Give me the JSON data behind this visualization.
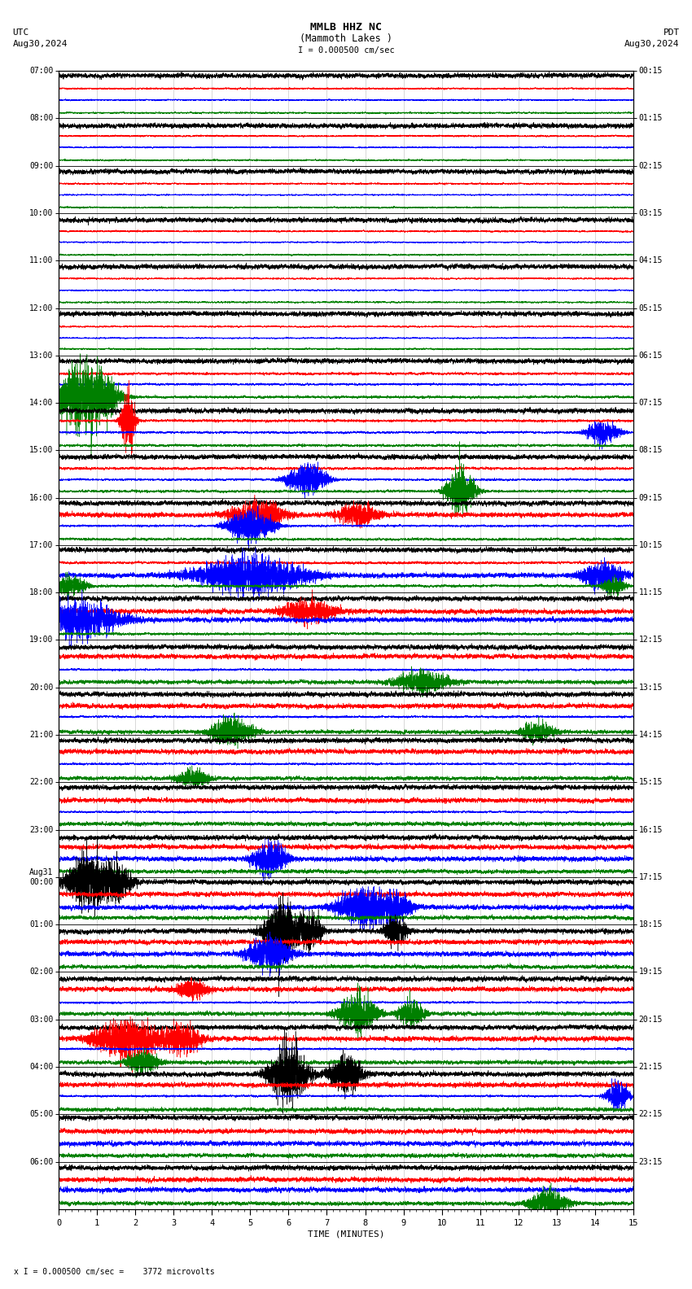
{
  "title_line1": "MMLB HHZ NC",
  "title_line2": "(Mammoth Lakes )",
  "scale_label": "I = 0.000500 cm/sec",
  "utc_label": "UTC",
  "utc_date": "Aug30,2024",
  "pdt_label": "PDT",
  "pdt_date": "Aug30,2024",
  "xlabel": "TIME (MINUTES)",
  "bottom_label": "x I = 0.000500 cm/sec =    3772 microvolts",
  "left_times": [
    "07:00",
    "08:00",
    "09:00",
    "10:00",
    "11:00",
    "12:00",
    "13:00",
    "14:00",
    "15:00",
    "16:00",
    "17:00",
    "18:00",
    "19:00",
    "20:00",
    "21:00",
    "22:00",
    "23:00",
    "Aug31\n00:00",
    "01:00",
    "02:00",
    "03:00",
    "04:00",
    "05:00",
    "06:00"
  ],
  "right_times": [
    "00:15",
    "01:15",
    "02:15",
    "03:15",
    "04:15",
    "05:15",
    "06:15",
    "07:15",
    "08:15",
    "09:15",
    "10:15",
    "11:15",
    "12:15",
    "13:15",
    "14:15",
    "15:15",
    "16:15",
    "17:15",
    "18:15",
    "19:15",
    "20:15",
    "21:15",
    "22:15",
    "23:15"
  ],
  "n_rows": 24,
  "n_traces_per_row": 4,
  "colors": [
    "black",
    "red",
    "blue",
    "green"
  ],
  "background_color": "#ffffff",
  "grid_color": "#aaaaaa",
  "x_min": 0,
  "x_max": 15,
  "seed": 42,
  "base_amplitude": 0.018,
  "trace_lw": 0.35
}
